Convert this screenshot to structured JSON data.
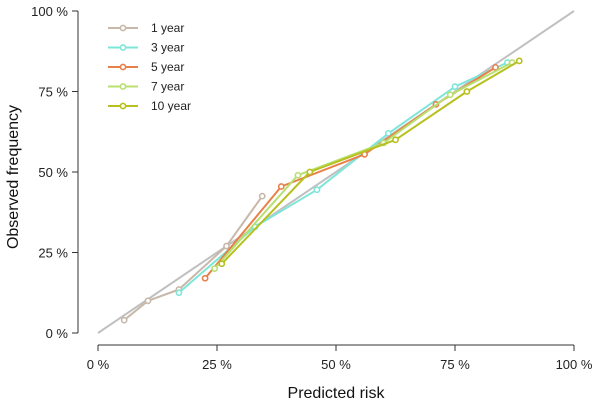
{
  "chart_data": {
    "type": "line",
    "title": "",
    "xlabel": "Predicted risk",
    "ylabel": "Observed frequency",
    "xlim": [
      0,
      100
    ],
    "ylim": [
      0,
      100
    ],
    "x_ticks": [
      "0 %",
      "25 %",
      "50 %",
      "75 %",
      "100 %"
    ],
    "y_ticks": [
      "0 %",
      "25 %",
      "50 %",
      "75 %",
      "100 %"
    ],
    "grid": false,
    "legend_position": "top-left",
    "reference_line": {
      "color": "#c0c0c0",
      "from": [
        0,
        0
      ],
      "to": [
        100,
        100
      ]
    },
    "series": [
      {
        "name": "1 year",
        "color": "#c8b8aa",
        "points": [
          [
            5.5,
            4
          ],
          [
            10.5,
            10
          ],
          [
            17,
            13.5
          ],
          [
            27,
            27
          ],
          [
            34.5,
            42.5
          ]
        ]
      },
      {
        "name": "3 year",
        "color": "#7ee6d9",
        "points": [
          [
            17,
            12.5
          ],
          [
            33,
            33
          ],
          [
            46,
            44.5
          ],
          [
            61,
            62
          ],
          [
            75,
            76.5
          ],
          [
            86,
            84
          ]
        ]
      },
      {
        "name": "5 year",
        "color": "#e8804a",
        "points": [
          [
            22.5,
            17
          ],
          [
            38.5,
            45.5
          ],
          [
            56,
            55.5
          ],
          [
            71,
            71
          ],
          [
            83.5,
            82.5
          ]
        ]
      },
      {
        "name": "7 year",
        "color": "#b8e070",
        "points": [
          [
            24.5,
            20
          ],
          [
            42,
            49
          ],
          [
            60,
            59
          ],
          [
            74,
            74
          ],
          [
            87,
            84
          ]
        ]
      },
      {
        "name": "10 year",
        "color": "#b8c020",
        "points": [
          [
            26,
            21.5
          ],
          [
            44.5,
            50
          ],
          [
            62.5,
            60
          ],
          [
            77.5,
            75
          ],
          [
            88.5,
            84.5
          ]
        ]
      }
    ]
  }
}
